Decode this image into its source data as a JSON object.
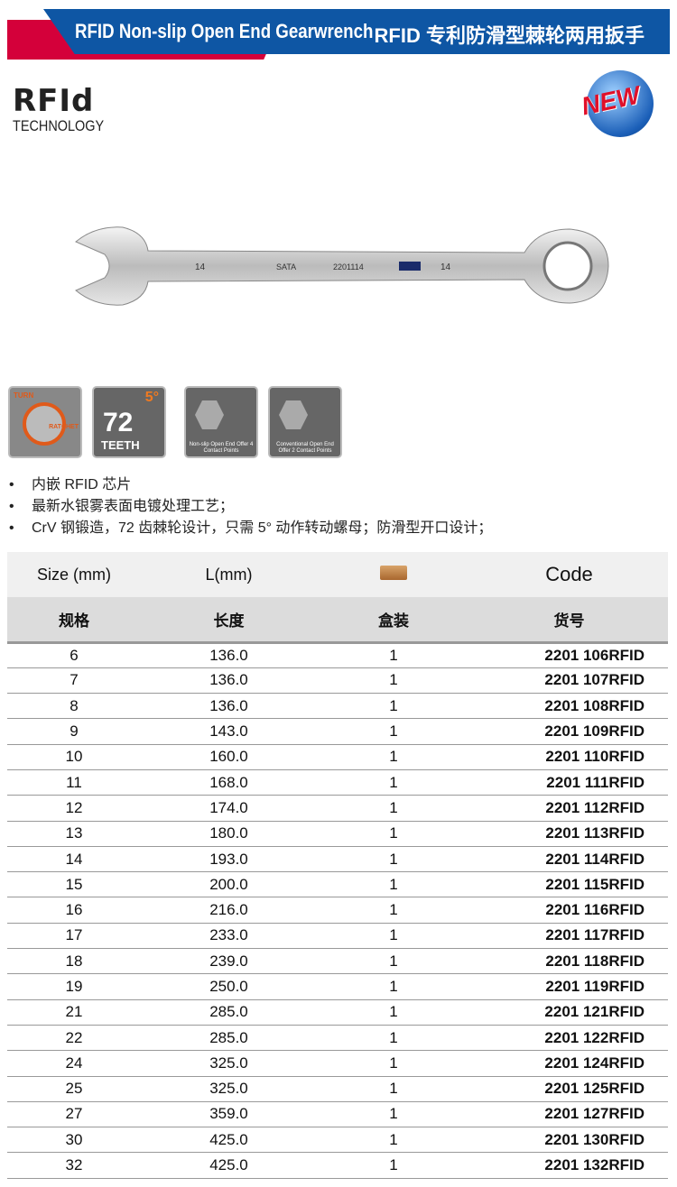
{
  "header": {
    "title_en": "RFID Non-slip Open End Gearwrench",
    "title_cn": "RFID 专利防滑型棘轮两用扳手",
    "colors": {
      "blue": "#0e56a4",
      "red": "#d4003a"
    }
  },
  "logo": {
    "text": "RFId",
    "subtitle": "TECHNOLOGY"
  },
  "badge": {
    "text": "NEW"
  },
  "product": {
    "marking_size": "14",
    "marking_code": "2201114",
    "brand": "SATA"
  },
  "features": [
    {
      "icon": "turn-ratchet-icon",
      "labels": [
        "TURN",
        "RATCHET"
      ]
    },
    {
      "icon": "72-teeth-icon",
      "number": "72",
      "label": "TEETH",
      "angle": "5°"
    },
    {
      "icon": "non-slip-open-end-icon",
      "caption": "Non-slip Open End Offer 4 Contact Points"
    },
    {
      "icon": "conventional-open-end-icon",
      "caption": "Conventional Open End Offer 2 Contact Points"
    }
  ],
  "bullets": [
    "内嵌 RFID 芯片",
    "最新水银雾表面电镀处理工艺；",
    "CrV 钢锻造，72 齿棘轮设计，只需 5° 动作转动螺母；防滑型开口设计；"
  ],
  "table": {
    "headers_en": [
      "Size (mm)",
      "L(mm)",
      "box-icon",
      "Code"
    ],
    "headers_cn": [
      "规格",
      "长度",
      "盒装",
      "货号"
    ],
    "rows": [
      [
        "6",
        "136.0",
        "1",
        "2201 106RFID"
      ],
      [
        "7",
        "136.0",
        "1",
        "2201 107RFID"
      ],
      [
        "8",
        "136.0",
        "1",
        "2201 108RFID"
      ],
      [
        "9",
        "143.0",
        "1",
        "2201 109RFID"
      ],
      [
        "10",
        "160.0",
        "1",
        "2201 110RFID"
      ],
      [
        "11",
        "168.0",
        "1",
        "2201 111RFID"
      ],
      [
        "12",
        "174.0",
        "1",
        "2201 112RFID"
      ],
      [
        "13",
        "180.0",
        "1",
        "2201 113RFID"
      ],
      [
        "14",
        "193.0",
        "1",
        "2201 114RFID"
      ],
      [
        "15",
        "200.0",
        "1",
        "2201 115RFID"
      ],
      [
        "16",
        "216.0",
        "1",
        "2201 116RFID"
      ],
      [
        "17",
        "233.0",
        "1",
        "2201 117RFID"
      ],
      [
        "18",
        "239.0",
        "1",
        "2201 118RFID"
      ],
      [
        "19",
        "250.0",
        "1",
        "2201 119RFID"
      ],
      [
        "21",
        "285.0",
        "1",
        "2201 121RFID"
      ],
      [
        "22",
        "285.0",
        "1",
        "2201 122RFID"
      ],
      [
        "24",
        "325.0",
        "1",
        "2201 124RFID"
      ],
      [
        "25",
        "325.0",
        "1",
        "2201 125RFID"
      ],
      [
        "27",
        "359.0",
        "1",
        "2201 127RFID"
      ],
      [
        "30",
        "425.0",
        "1",
        "2201 130RFID"
      ],
      [
        "32",
        "425.0",
        "1",
        "2201 132RFID"
      ]
    ]
  }
}
